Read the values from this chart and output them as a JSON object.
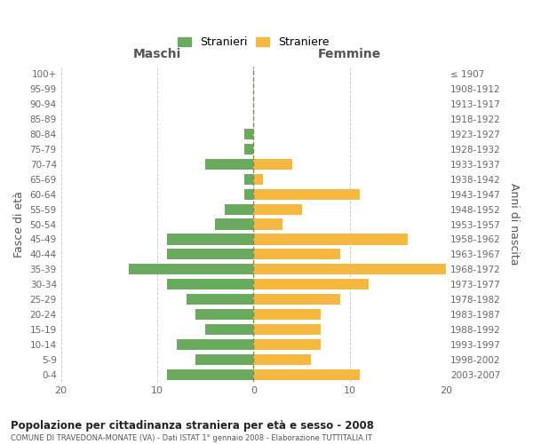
{
  "age_groups": [
    "100+",
    "95-99",
    "90-94",
    "85-89",
    "80-84",
    "75-79",
    "70-74",
    "65-69",
    "60-64",
    "55-59",
    "50-54",
    "45-49",
    "40-44",
    "35-39",
    "30-34",
    "25-29",
    "20-24",
    "15-19",
    "10-14",
    "5-9",
    "0-4"
  ],
  "birth_years": [
    "≤ 1907",
    "1908-1912",
    "1913-1917",
    "1918-1922",
    "1923-1927",
    "1928-1932",
    "1933-1937",
    "1938-1942",
    "1943-1947",
    "1948-1952",
    "1953-1957",
    "1958-1962",
    "1963-1967",
    "1968-1972",
    "1973-1977",
    "1978-1982",
    "1983-1987",
    "1988-1992",
    "1993-1997",
    "1998-2002",
    "2003-2007"
  ],
  "maschi": [
    0,
    0,
    0,
    0,
    1,
    1,
    5,
    1,
    1,
    3,
    4,
    9,
    9,
    13,
    9,
    7,
    6,
    5,
    8,
    6,
    9
  ],
  "femmine": [
    0,
    0,
    0,
    0,
    0,
    0,
    4,
    1,
    11,
    5,
    3,
    16,
    9,
    20,
    12,
    9,
    7,
    7,
    7,
    6,
    11
  ],
  "color_maschi": "#6aaa5e",
  "color_femmine": "#f5b942",
  "title_main": "Popolazione per cittadinanza straniera per età e sesso - 2008",
  "title_sub": "COMUNE DI TRAVEDONA-MONATE (VA) - Dati ISTAT 1° gennaio 2008 - Elaborazione TUTTITALIA.IT",
  "label_maschi": "Stranieri",
  "label_femmine": "Straniere",
  "ylabel_left": "Fasce di età",
  "ylabel_right": "Anni di nascita",
  "xlabel_left": "Maschi",
  "xlabel_right": "Femmine",
  "xlim": 20,
  "background_color": "#ffffff",
  "grid_color": "#cccccc"
}
